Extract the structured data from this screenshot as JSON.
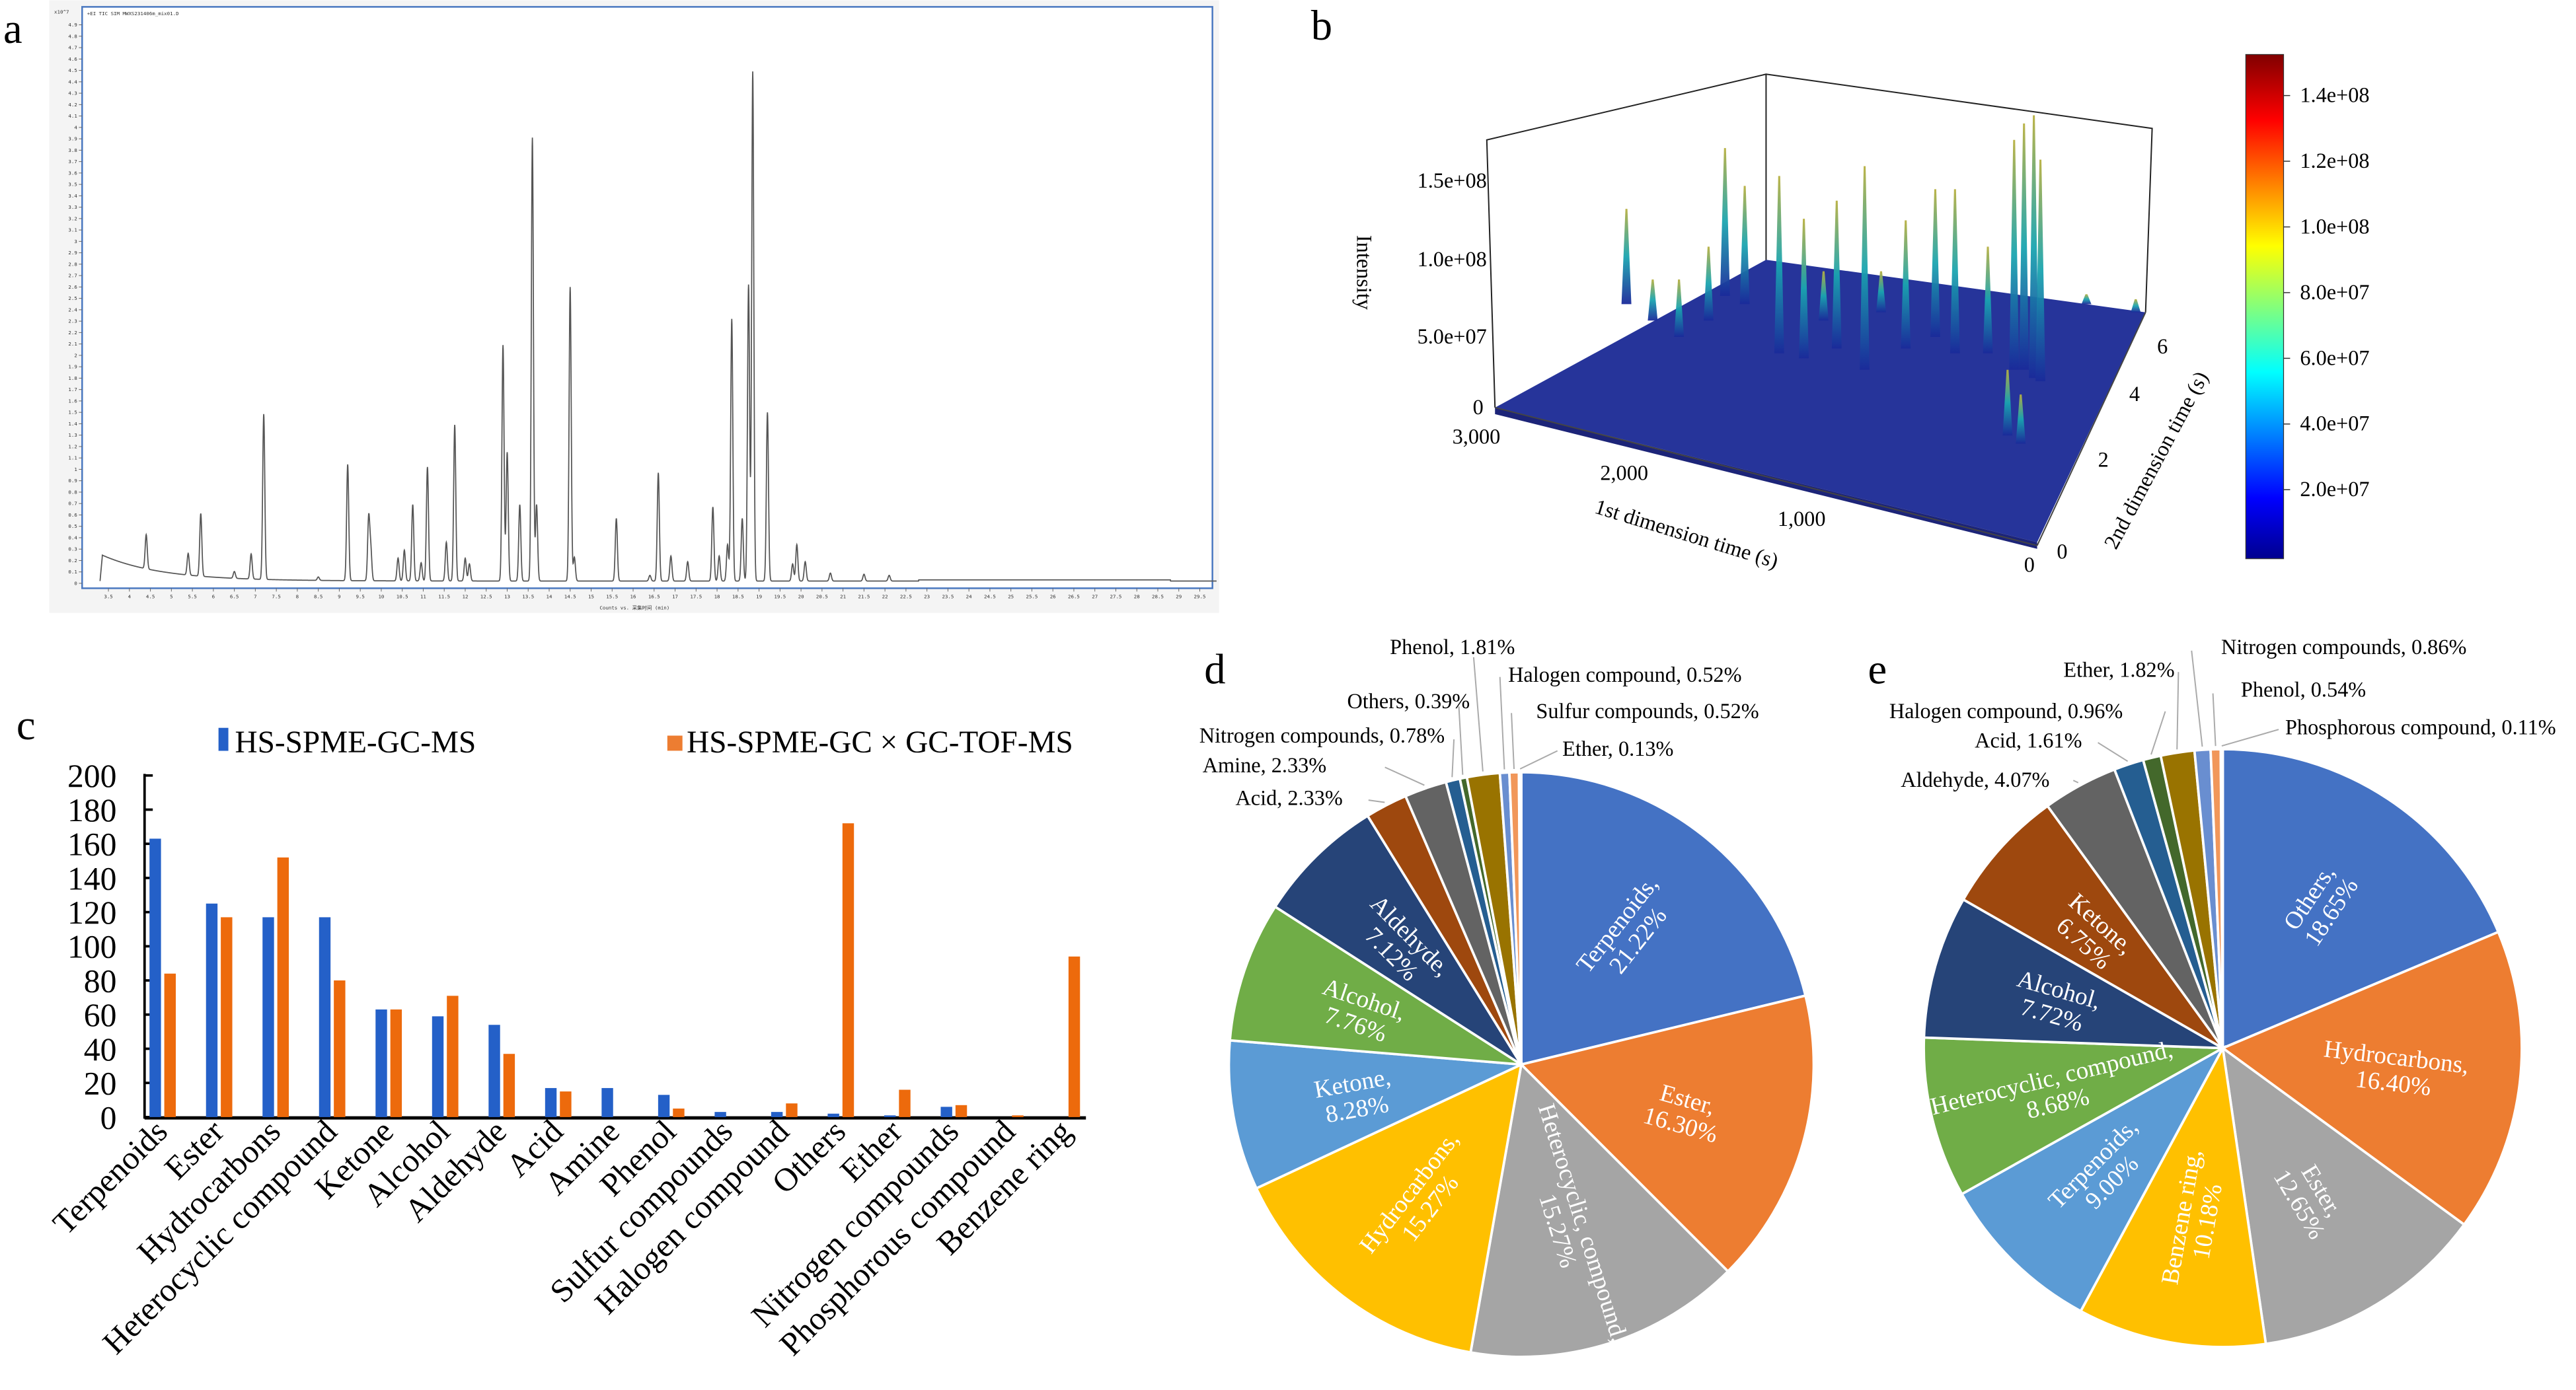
{
  "panels": {
    "a": "a",
    "b": "b",
    "c": "c",
    "d": "d",
    "e": "e"
  },
  "chart_data": [
    {
      "panel": "a",
      "type": "line",
      "title": "+EI TIC SIM MWXS231406m_mix01.D",
      "y_multiplier": "x10^7",
      "xlabel": "Counts vs. 采集时间 (min)",
      "xlim": [
        3.0,
        30.0
      ],
      "ylim": [
        0,
        5.0
      ],
      "x_ticks": {
        "start": 3.5,
        "end": 29.5,
        "step": 0.5
      },
      "y_ticks": {
        "start": 0,
        "end": 4.9,
        "step": 0.1
      },
      "peaks": [
        [
          4.4,
          0.3
        ],
        [
          5.4,
          0.19
        ],
        [
          5.7,
          0.55
        ],
        [
          6.5,
          0.06
        ],
        [
          6.9,
          0.22
        ],
        [
          7.2,
          1.45
        ],
        [
          8.5,
          0.03
        ],
        [
          9.2,
          1.02
        ],
        [
          9.7,
          0.55
        ],
        [
          9.75,
          0.27
        ],
        [
          10.4,
          0.2
        ],
        [
          10.55,
          0.27
        ],
        [
          10.75,
          0.67
        ],
        [
          10.95,
          0.16
        ],
        [
          11.1,
          1.0
        ],
        [
          11.55,
          0.34
        ],
        [
          11.75,
          1.37
        ],
        [
          12.0,
          0.2
        ],
        [
          12.1,
          0.15
        ],
        [
          12.9,
          2.07
        ],
        [
          13.0,
          1.13
        ],
        [
          13.3,
          0.67
        ],
        [
          13.6,
          3.89
        ],
        [
          13.7,
          0.67
        ],
        [
          14.5,
          2.58
        ],
        [
          14.6,
          0.21
        ],
        [
          15.6,
          0.55
        ],
        [
          16.4,
          0.05
        ],
        [
          16.6,
          0.95
        ],
        [
          16.9,
          0.22
        ],
        [
          17.3,
          0.17
        ],
        [
          17.9,
          0.65
        ],
        [
          18.05,
          0.22
        ],
        [
          18.25,
          0.32
        ],
        [
          18.35,
          2.3
        ],
        [
          18.6,
          0.55
        ],
        [
          18.75,
          2.6
        ],
        [
          18.85,
          4.47
        ],
        [
          19.2,
          1.48
        ],
        [
          19.8,
          0.15
        ],
        [
          19.9,
          0.32
        ],
        [
          20.1,
          0.17
        ],
        [
          20.7,
          0.07
        ],
        [
          21.5,
          0.06
        ],
        [
          22.1,
          0.05
        ]
      ]
    },
    {
      "panel": "b",
      "type": "surface3d",
      "zlabel": "Intensity",
      "xlabel": "1st dimension time (s)",
      "ylabel": "2nd dimension time (s)",
      "z_ticks": [
        "0",
        "5.0e+07",
        "1.0e+08",
        "1.5e+08"
      ],
      "x_ticks": [
        "3,000",
        "2,000",
        "1,000",
        "0"
      ],
      "y_ticks": [
        "0",
        "2",
        "4",
        "6"
      ],
      "colorbar": {
        "ticks": [
          "1.4e+08",
          "1.2e+08",
          "1.0e+08",
          "8.0e+07",
          "6.0e+07",
          "4.0e+07",
          "2.0e+07"
        ],
        "range": [
          0,
          150000000.0
        ],
        "colormap": "jet"
      }
    },
    {
      "panel": "c",
      "type": "bar",
      "ylim": [
        0,
        200
      ],
      "y_ticks": [
        0,
        20,
        40,
        60,
        80,
        100,
        120,
        140,
        160,
        180,
        200
      ],
      "legend_position": "top",
      "categories": [
        "Terpenoids",
        "Ester",
        "Hydrocarbons",
        "Heterocyclic compound",
        "Ketone",
        "Alcohol",
        "Aldehyde",
        "Acid",
        "Amine",
        "Phenol",
        "Sulfur compounds",
        "Halogen compound",
        "Others",
        "Ether",
        "Nitrogen compounds",
        "Phosphorous compound",
        "Benzene ring"
      ],
      "series": [
        {
          "name": "HS-SPME-GC-MS",
          "color": "#2460C8",
          "values": [
            163,
            125,
            117,
            117,
            63,
            59,
            54,
            17,
            17,
            13,
            3,
            3,
            2,
            1,
            6,
            0,
            0
          ]
        },
        {
          "name": "HS-SPME-GC × GC-TOF-MS",
          "color": "#ED6A0C",
          "values": [
            84,
            117,
            152,
            80,
            63,
            71,
            37,
            15,
            0,
            5,
            0,
            8,
            172,
            16,
            7,
            1,
            94
          ]
        }
      ]
    },
    {
      "panel": "d",
      "type": "pie",
      "slices": [
        {
          "name": "Terpenoids",
          "value": 21.22,
          "color": "#4472C4"
        },
        {
          "name": "Ester",
          "value": 16.3,
          "color": "#ED7D31"
        },
        {
          "name": "Heterocyclic, compound,",
          "value": 15.27,
          "color": "#A5A5A5"
        },
        {
          "name": "Hydrocarbons,",
          "value": 15.27,
          "color": "#FFC000"
        },
        {
          "name": "Ketone",
          "value": 8.28,
          "color": "#5B9BD5"
        },
        {
          "name": "Alcohol",
          "value": 7.76,
          "color": "#70AD47"
        },
        {
          "name": "Aldehyde",
          "value": 7.12,
          "color": "#264478"
        },
        {
          "name": "Acid",
          "value": 2.33,
          "color": "#9E480E"
        },
        {
          "name": "Amine",
          "value": 2.33,
          "color": "#636363"
        },
        {
          "name": "Nitrogen compounds",
          "value": 0.78,
          "color": "#255E91"
        },
        {
          "name": "Others",
          "value": 0.39,
          "color": "#43682B"
        },
        {
          "name": "Phenol",
          "value": 1.81,
          "color": "#997300"
        },
        {
          "name": "Halogen compound",
          "value": 0.52,
          "color": "#698ED0"
        },
        {
          "name": "Sulfur compounds",
          "value": 0.52,
          "color": "#F1975A"
        },
        {
          "name": "Ether",
          "value": 0.13,
          "color": "#B7B7B7"
        }
      ],
      "outside_labels": [
        "Acid, 2.33%",
        "Amine, 2.33%",
        "Nitrogen compounds, 0.78%",
        "Others, 0.39%",
        "Phenol, 1.81%",
        "Halogen compound, 0.52%",
        "Sulfur compounds, 0.52%",
        "Ether, 0.13%"
      ],
      "inside_labels": [
        "Terpenoids, 21.22%",
        "Ester, 16.30%",
        "Heterocyclic, compound, 15.27%",
        "Hydrocarbons, 15.27%",
        "Ketone, 8.28%",
        "Alcohol, 7.76%",
        "Aldehyde, 7.12%"
      ]
    },
    {
      "panel": "e",
      "type": "pie",
      "slices": [
        {
          "name": "Others",
          "value": 18.65,
          "color": "#4472C4"
        },
        {
          "name": "Hydrocarbons",
          "value": 16.4,
          "color": "#ED7D31"
        },
        {
          "name": "Ester",
          "value": 12.65,
          "color": "#A5A5A5"
        },
        {
          "name": "Benzene ring",
          "value": 10.18,
          "color": "#FFC000"
        },
        {
          "name": "Terpenoids",
          "value": 9.0,
          "color": "#5B9BD5"
        },
        {
          "name": "Heterocyclic, compound,",
          "value": 8.68,
          "color": "#70AD47"
        },
        {
          "name": "Alcohol",
          "value": 7.72,
          "color": "#264478"
        },
        {
          "name": "Ketone",
          "value": 6.75,
          "color": "#9E480E"
        },
        {
          "name": "Aldehyde",
          "value": 4.07,
          "color": "#636363"
        },
        {
          "name": "Acid",
          "value": 1.61,
          "color": "#255E91"
        },
        {
          "name": "Halogen compound",
          "value": 0.96,
          "color": "#43682B"
        },
        {
          "name": "Ether",
          "value": 1.82,
          "color": "#997300"
        },
        {
          "name": "Nitrogen compounds",
          "value": 0.86,
          "color": "#698ED0"
        },
        {
          "name": "Phenol",
          "value": 0.54,
          "color": "#F1975A"
        },
        {
          "name": "Phosphorous compound",
          "value": 0.11,
          "color": "#B7B7B7"
        }
      ],
      "outside_labels": [
        "Aldehyde, 4.07%",
        "Acid, 1.61%",
        "Halogen compound, 0.96%",
        "Ether, 1.82%",
        "Nitrogen compounds, 0.86%",
        "Phenol, 0.54%",
        "Phosphorous compound, 0.11%"
      ],
      "inside_labels": [
        "Others, 18.65%",
        "Hydrocarbons, 16.40%",
        "Ester, 12.65%",
        "Benzene ring, 10.18%",
        "Terpenoids, 9.00%",
        "Heterocyclic, compound, 8.68%",
        "Alcohol, 7.72%",
        "Ketone, 6.75%"
      ]
    }
  ]
}
